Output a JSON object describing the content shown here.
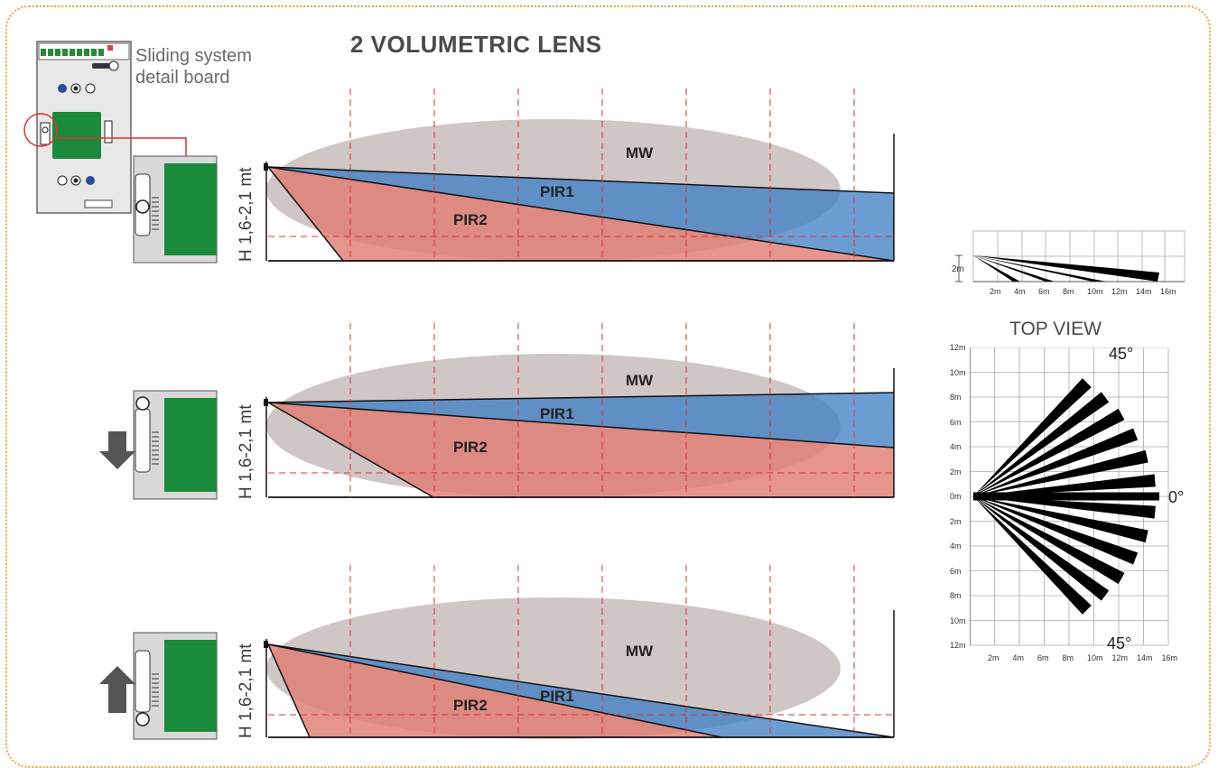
{
  "title": "2 VOLUMETRIC LENS",
  "detail_board": {
    "line1": "Sliding system",
    "line2": "detail board"
  },
  "height_label": "H 1,6-2,1 mt",
  "zones": {
    "mw": "MW",
    "pir1": "PIR1",
    "pir2": "PIR2"
  },
  "side_view": {
    "height_label": "2m",
    "x_ticks": [
      "2m",
      "4m",
      "6m",
      "8m",
      "10m",
      "12m",
      "14m",
      "16m"
    ]
  },
  "top_view": {
    "title": "TOP VIEW",
    "angle_top": "45°",
    "angle_mid": "0°",
    "angle_bottom": "45°",
    "y_ticks": [
      "12m",
      "10m",
      "8m",
      "6m",
      "4m",
      "2m",
      "0m",
      "2m",
      "4m",
      "6m",
      "8m",
      "10m",
      "12m"
    ],
    "x_ticks": [
      "2m",
      "4m",
      "6m",
      "8m",
      "10m",
      "12m",
      "14m",
      "16m"
    ]
  },
  "colors": {
    "mw": "#c9bcbc",
    "pir1": "#3a7cc4",
    "pir2": "#e07a70",
    "board_green": "#1b8a3a",
    "dashed_red": "#e03030",
    "frame": "#f2a23a"
  },
  "panels": [
    {
      "arrow": "none"
    },
    {
      "arrow": "down"
    },
    {
      "arrow": "up"
    }
  ]
}
